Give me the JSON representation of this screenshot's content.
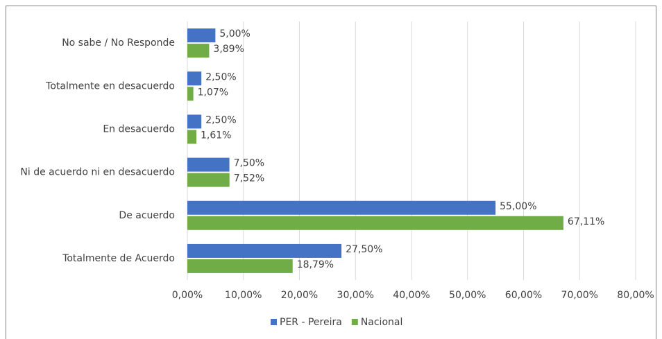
{
  "chart_data": {
    "type": "hbar",
    "categories": [
      "No sabe / No Responde",
      "Totalmente en desacuerdo",
      "En desacuerdo",
      "Ni de acuerdo ni en desacuerdo",
      "De acuerdo",
      "Totalmente de Acuerdo"
    ],
    "series": [
      {
        "name": "PER - Pereira",
        "color": "#4472c4",
        "values": [
          5,
          2.5,
          2.5,
          7.5,
          55,
          27.5
        ],
        "value_labels": [
          "5,00%",
          "2,50%",
          "2,50%",
          "7,50%",
          "55,00%",
          "27,50%"
        ]
      },
      {
        "name": "Nacional",
        "color": "#70ad47",
        "values": [
          3.89,
          1.07,
          1.61,
          7.52,
          67.11,
          18.79
        ],
        "value_labels": [
          "3,89%",
          "1,07%",
          "1,61%",
          "7,52%",
          "67,11%",
          "18,79%"
        ]
      }
    ],
    "xlim": [
      0,
      80
    ],
    "xticks": [
      {
        "value": 0,
        "label": "0,00%"
      },
      {
        "value": 10,
        "label": "10,00%"
      },
      {
        "value": 20,
        "label": "20,00%"
      },
      {
        "value": 30,
        "label": "30,00%"
      },
      {
        "value": 40,
        "label": "40,00%"
      },
      {
        "value": 50,
        "label": "50,00%"
      },
      {
        "value": 60,
        "label": "60,00%"
      },
      {
        "value": 70,
        "label": "70,00%"
      },
      {
        "value": 80,
        "label": "80,00%"
      }
    ],
    "grid": true,
    "legend": "bottom"
  }
}
